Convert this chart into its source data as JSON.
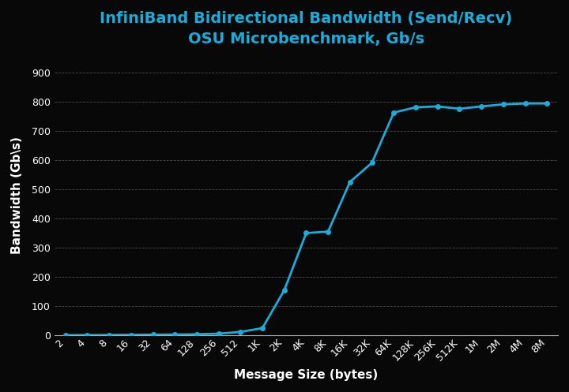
{
  "title_line1": "InfiniBand Bidirectional Bandwidth (Send/Recv)",
  "title_line2": "OSU Microbenchmark, Gb/s",
  "xlabel": "Message Size (bytes)",
  "ylabel": "Bandwidth (Gb\\s)",
  "background_color": "#080808",
  "text_color": "#ffffff",
  "line_color": "#1aaddc",
  "grid_color": "#555555",
  "x_labels": [
    "2",
    "4",
    "8",
    "16",
    "32",
    "64",
    "128",
    "256",
    "512",
    "1K",
    "2K",
    "4K",
    "8K",
    "16K",
    "32K",
    "64K",
    "128K",
    "256K",
    "512K",
    "1M",
    "2M",
    "4M",
    "8M"
  ],
  "y_values": [
    1.0,
    1.2,
    1.5,
    2.0,
    2.5,
    3.0,
    4.0,
    6.0,
    12.0,
    25.0,
    155.0,
    350.0,
    355.0,
    525.0,
    590.0,
    762.0,
    780.0,
    783.0,
    775.0,
    783.0,
    790.0,
    793.0,
    793.0
  ],
  "ylim": [
    0,
    960
  ],
  "yticks": [
    0,
    100,
    200,
    300,
    400,
    500,
    600,
    700,
    800,
    900
  ],
  "title_fontsize": 14,
  "axis_label_fontsize": 11,
  "tick_fontsize": 9
}
